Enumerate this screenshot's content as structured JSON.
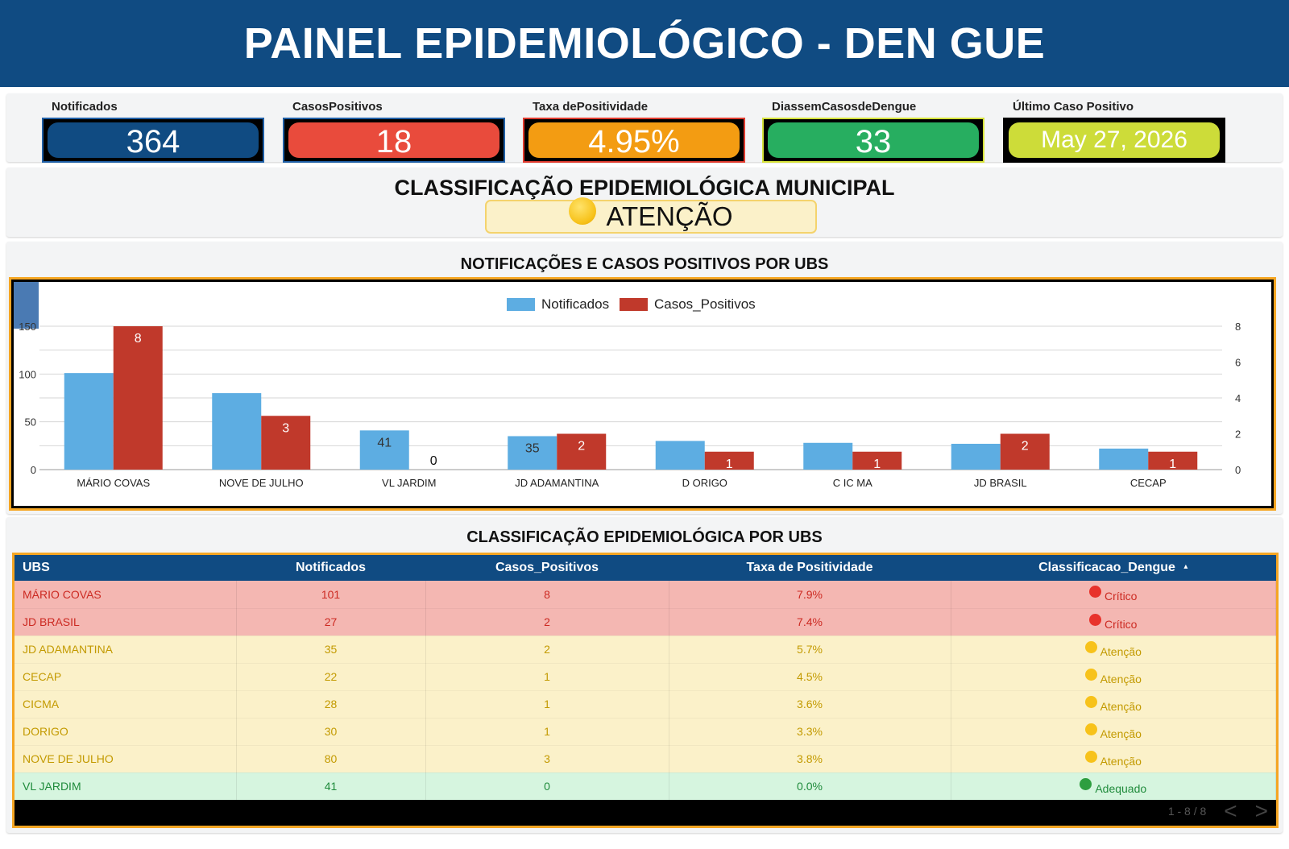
{
  "header": {
    "title": "PAINEL EPIDEMIOLÓGICO - DEN GUE"
  },
  "kpis": [
    {
      "label": "Notificados",
      "value": "364",
      "color": "#104b82",
      "border": "#1f5fa6"
    },
    {
      "label": "CasosPositivos",
      "value": "18",
      "color": "#e94b3c",
      "border": "#1f5fa6"
    },
    {
      "label": "Taxa dePositividade",
      "value": "4.95%",
      "color": "#f39c12",
      "border": "#e03b2f"
    },
    {
      "label": "DiassemCasosdeDengue",
      "value": "33",
      "color": "#27ae60",
      "border": "#d6e23a"
    },
    {
      "label": "Último Caso Positivo",
      "value": "May 27, 2026",
      "color": "#cddc39",
      "border": "#000000"
    }
  ],
  "municipal": {
    "title": "CLASSIFICAÇÃO EPIDEMIOLÓGICA MUNICIPAL",
    "status": "ATENÇÃO"
  },
  "chart_section": {
    "title": "NOTIFICAÇÕES E CASOS POSITIVOS POR UBS"
  },
  "chart_data": {
    "type": "bar",
    "title": "NOTIFICAÇÕES E CASOS POSITIVOS POR UBS",
    "categories": [
      "MÁRIO COVAS",
      "NOVE DE JULHO",
      "VL JARDIM",
      "JD ADAMANTINA",
      "D ORIGO",
      "C IC MA",
      "JD BRASIL",
      "CECAP"
    ],
    "series": [
      {
        "name": "Notificados",
        "axis": "left",
        "color": "#5dade2",
        "values": [
          101,
          80,
          41,
          35,
          30,
          28,
          27,
          22
        ],
        "labels": [
          "",
          "",
          "41",
          "35",
          "",
          "",
          "",
          ""
        ]
      },
      {
        "name": "Casos_Positivos",
        "axis": "right",
        "color": "#c0392b",
        "values": [
          8,
          3,
          0,
          2,
          1,
          1,
          2,
          1
        ],
        "labels": [
          "8",
          "3",
          "0",
          "2",
          "1",
          "1",
          "2",
          "1"
        ]
      }
    ],
    "ylim_left": [
      0,
      150
    ],
    "yticks_left": [
      "0",
      "50",
      "100",
      "150"
    ],
    "ylim_right": [
      0,
      8
    ],
    "yticks_right": [
      "0",
      "2",
      "4",
      "6",
      "8"
    ],
    "legend": "top-center",
    "grid": true
  },
  "table_section": {
    "title": "CLASSIFICAÇÃO EPIDEMIOLÓGICA POR UBS"
  },
  "table": {
    "columns": [
      "UBS",
      "Notificados",
      "Casos_Positivos",
      "Taxa de Positividade",
      "Classificacao_Dengue"
    ],
    "sort_indicator": "▴",
    "rows": [
      {
        "ubs": "MÁRIO COVAS",
        "notificados": "101",
        "casos": "8",
        "taxa": "7.9%",
        "class": "Crítico",
        "level": "critico"
      },
      {
        "ubs": "JD BRASIL",
        "notificados": "27",
        "casos": "2",
        "taxa": "7.4%",
        "class": "Crítico",
        "level": "critico"
      },
      {
        "ubs": "JD ADAMANTINA",
        "notificados": "35",
        "casos": "2",
        "taxa": "5.7%",
        "class": "Atenção",
        "level": "atencao"
      },
      {
        "ubs": "CECAP",
        "notificados": "22",
        "casos": "1",
        "taxa": "4.5%",
        "class": "Atenção",
        "level": "atencao"
      },
      {
        "ubs": "CICMA",
        "notificados": "28",
        "casos": "1",
        "taxa": "3.6%",
        "class": "Atenção",
        "level": "atencao"
      },
      {
        "ubs": "DORIGO",
        "notificados": "30",
        "casos": "1",
        "taxa": "3.3%",
        "class": "Atenção",
        "level": "atencao"
      },
      {
        "ubs": "NOVE DE JULHO",
        "notificados": "80",
        "casos": "3",
        "taxa": "3.8%",
        "class": "Atenção",
        "level": "atencao"
      },
      {
        "ubs": "VL JARDIM",
        "notificados": "41",
        "casos": "0",
        "taxa": "0.0%",
        "class": "Adequado",
        "level": "adequado"
      }
    ],
    "pagination": "1 - 8 / 8",
    "prev_icon": "chevron-left-icon",
    "next_icon": "chevron-right-icon"
  },
  "colors": {
    "header": "#104b82",
    "critico": "#e8322b",
    "atencao": "#f7c21a",
    "adequado": "#2e9e3f",
    "accent_border": "#f5a623"
  }
}
